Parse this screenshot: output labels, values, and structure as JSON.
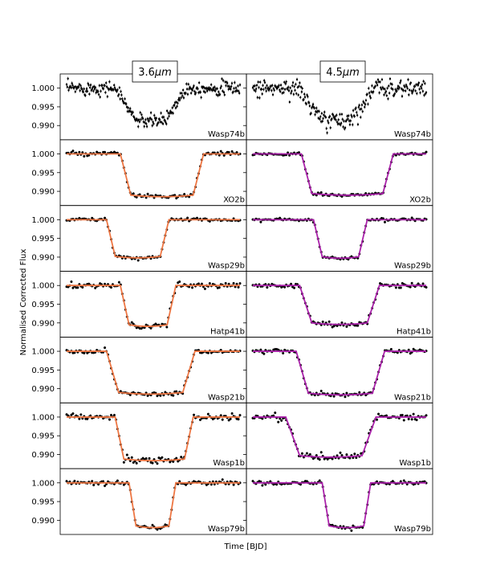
{
  "figure": {
    "ylabel": "Normalised Corrected Flux",
    "xlabel": "Time [BJD]",
    "colors": {
      "points": "#000000",
      "fit_3_6": "#ee7744",
      "fit_4_5": "#aa22aa",
      "frame": "#000000"
    }
  },
  "chart_data": {
    "type": "scatter",
    "ylabel": "Normalised Corrected Flux",
    "xlabel": "Time [BJD]",
    "ylim": [
      0.9875,
      1.0025
    ],
    "yticks": [
      1.0,
      0.995,
      0.99
    ],
    "ytick_labels": [
      "1.000",
      "0.995",
      "0.990"
    ],
    "grid": false,
    "columns": [
      {
        "band": "3.6μm",
        "title_prefix": "3.6",
        "title_unit": "μm",
        "fit_color": "#ee7744"
      },
      {
        "band": "4.5μm",
        "title_prefix": "4.5",
        "title_unit": "μm",
        "fit_color": "#aa22aa"
      }
    ],
    "planets": [
      {
        "name": "Wasp74b",
        "depth": [
          0.0085,
          0.0083
        ],
        "ingress": [
          0.28,
          0.26
        ],
        "egress": [
          0.69,
          0.7
        ],
        "duration_in": [
          0.12,
          0.13
        ],
        "noise": [
          0.0009,
          0.0012
        ],
        "model": false
      },
      {
        "name": "XO2b",
        "depth": [
          0.011,
          0.0106
        ],
        "ingress": [
          0.31,
          0.28
        ],
        "egress": [
          0.79,
          0.81
        ],
        "duration_in": [
          0.06,
          0.06
        ],
        "noise": [
          0.0003,
          0.0002
        ],
        "model": true
      },
      {
        "name": "Wasp29b",
        "depth": [
          0.0098,
          0.0099
        ],
        "ingress": [
          0.23,
          0.35
        ],
        "egress": [
          0.59,
          0.66
        ],
        "duration_in": [
          0.05,
          0.05
        ],
        "noise": [
          0.0002,
          0.0002
        ],
        "model": true
      },
      {
        "name": "Hatp41b",
        "depth": [
          0.0105,
          0.01
        ],
        "ingress": [
          0.31,
          0.27
        ],
        "egress": [
          0.63,
          0.73
        ],
        "duration_in": [
          0.05,
          0.07
        ],
        "noise": [
          0.0004,
          0.0003
        ],
        "model": true
      },
      {
        "name": "Wasp21b",
        "depth": [
          0.011,
          0.0112
        ],
        "ingress": [
          0.23,
          0.25
        ],
        "egress": [
          0.74,
          0.76
        ],
        "duration_in": [
          0.07,
          0.07
        ],
        "noise": [
          0.0003,
          0.0003
        ],
        "model": true
      },
      {
        "name": "Wasp1b",
        "depth": [
          0.0112,
          0.0103
        ],
        "ingress": [
          0.28,
          0.19
        ],
        "egress": [
          0.73,
          0.71
        ],
        "duration_in": [
          0.05,
          0.08
        ],
        "noise": [
          0.0004,
          0.0005
        ],
        "model": true
      },
      {
        "name": "Wasp79b",
        "depth": [
          0.0115,
          0.0115
        ],
        "ingress": [
          0.36,
          0.4
        ],
        "egress": [
          0.63,
          0.68
        ],
        "duration_in": [
          0.04,
          0.04
        ],
        "noise": [
          0.0003,
          0.0003
        ],
        "model": true
      }
    ]
  }
}
